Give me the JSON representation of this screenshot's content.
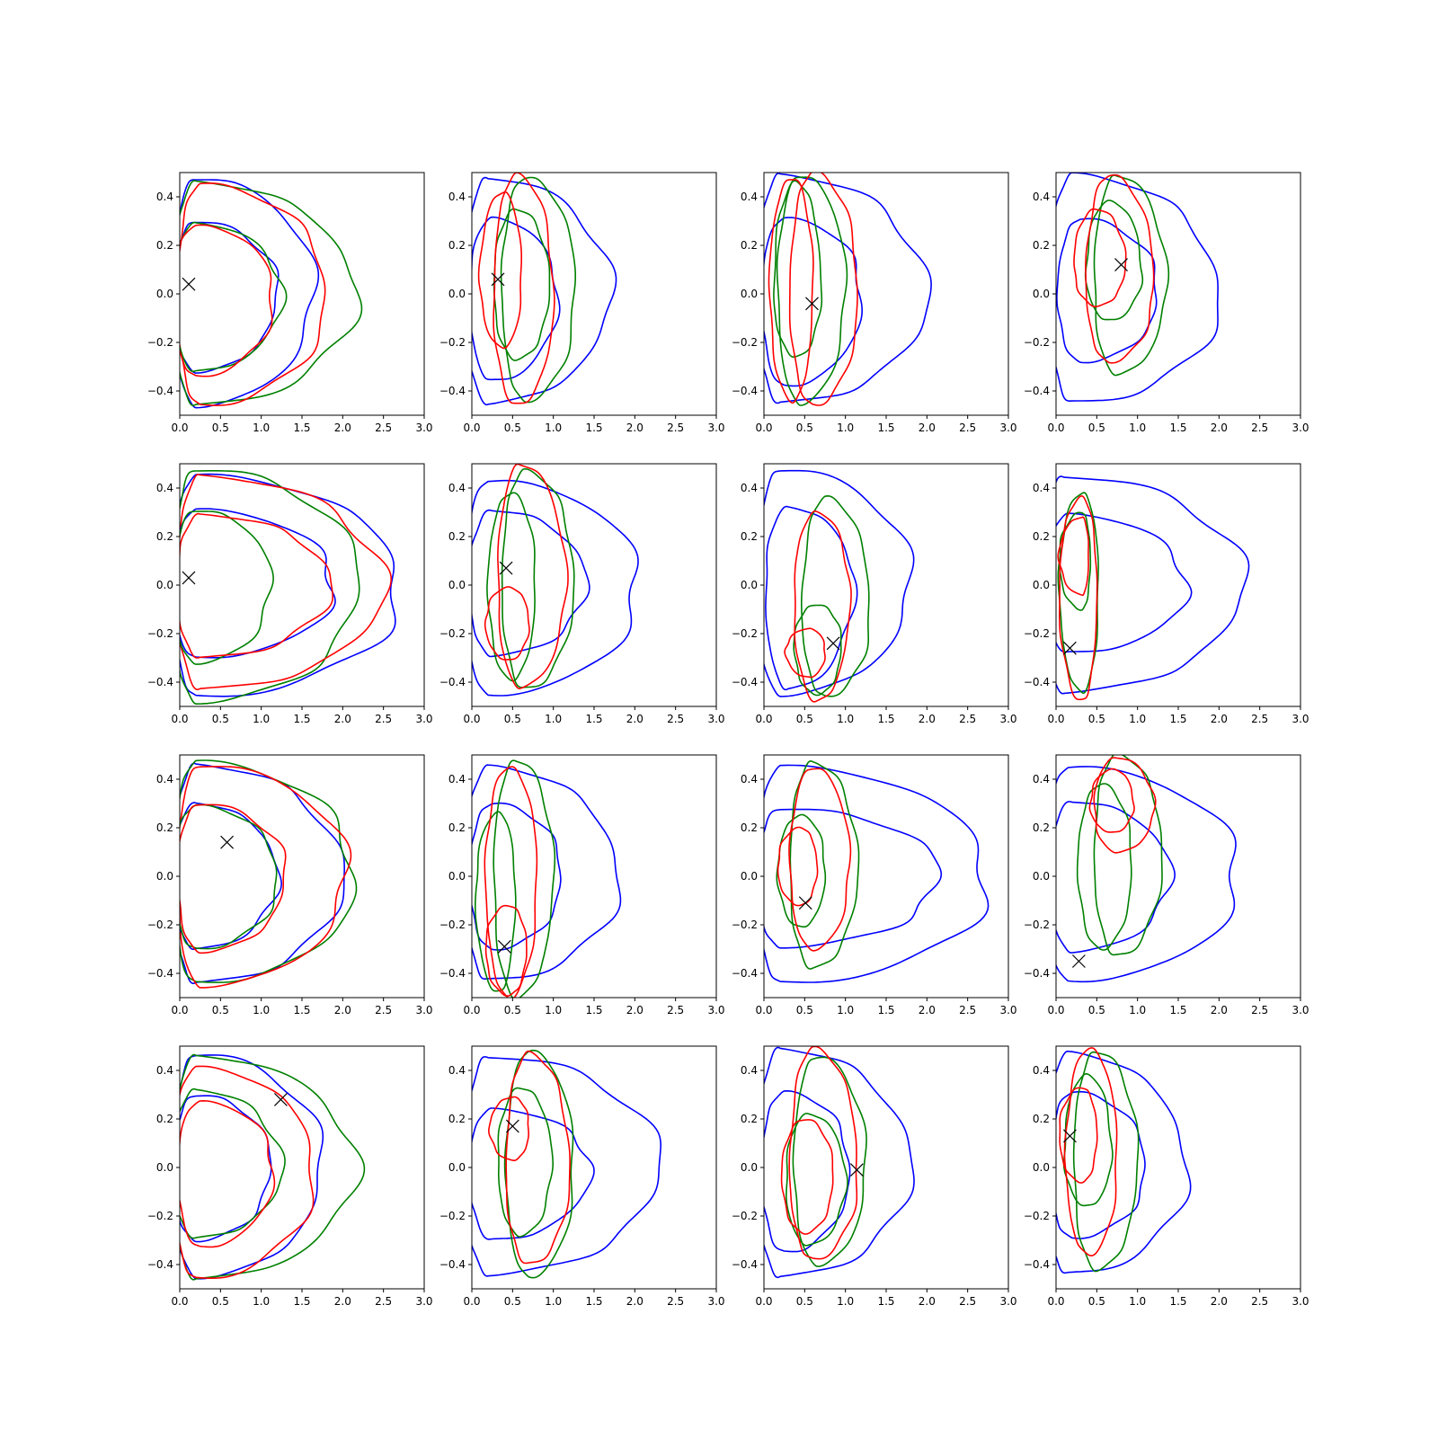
{
  "colors": {
    "blue": "#0000ff",
    "green": "#008000",
    "red": "#ff0000",
    "marker": "#000000"
  },
  "chart_data": {
    "type": "contour",
    "grid": false,
    "xlim": [
      0,
      3.0
    ],
    "ylim": [
      -0.5,
      0.5
    ],
    "xticks": [
      "0.0",
      "0.5",
      "1.0",
      "1.5",
      "2.0",
      "2.5",
      "3.0"
    ],
    "yticks": [
      "−0.4",
      "−0.2",
      "0.0",
      "0.2",
      "0.4"
    ],
    "xtick_values": [
      0,
      0.5,
      1.0,
      1.5,
      2.0,
      2.5,
      3.0
    ],
    "ytick_values": [
      -0.4,
      -0.2,
      0,
      0.2,
      0.4
    ],
    "panels": [
      {
        "marker": [
          0.11,
          0.04
        ],
        "contours": [
          {
            "color": "blue",
            "cx": 0.2,
            "cy": 0,
            "rx": 1.45,
            "top": 0.48,
            "bot": -0.46
          },
          {
            "color": "green",
            "cx": 0.2,
            "cy": 0,
            "rx": 1.95,
            "top": 0.46,
            "bot": -0.46
          },
          {
            "color": "red",
            "cx": 0.25,
            "cy": 0,
            "rx": 1.55,
            "top": 0.45,
            "bot": -0.46
          },
          {
            "color": "blue",
            "cx": 0.2,
            "cy": 0,
            "rx": 1.0,
            "top": 0.3,
            "bot": -0.32
          },
          {
            "color": "green",
            "cx": 0.2,
            "cy": 0,
            "rx": 1.05,
            "top": 0.29,
            "bot": -0.32
          },
          {
            "color": "red",
            "cx": 0.2,
            "cy": 0,
            "rx": 0.95,
            "top": 0.28,
            "bot": -0.34
          }
        ]
      },
      {
        "marker": [
          0.32,
          0.06
        ],
        "contours": [
          {
            "color": "blue",
            "cx": 0.2,
            "cy": 0,
            "rx": 1.5,
            "top": 0.48,
            "bot": -0.45
          },
          {
            "color": "blue",
            "cx": 0.25,
            "cy": 0,
            "rx": 0.8,
            "top": 0.31,
            "bot": -0.36
          },
          {
            "color": "green",
            "cx": 0.65,
            "cy": 0.02,
            "rx": 0.62,
            "top": 0.48,
            "bot": -0.44
          },
          {
            "color": "green",
            "cx": 0.55,
            "cy": 0.03,
            "rx": 0.4,
            "top": 0.35,
            "bot": -0.27
          },
          {
            "color": "red",
            "cx": 0.55,
            "cy": 0,
            "rx": 0.45,
            "top": 0.49,
            "bot": -0.46
          },
          {
            "color": "red",
            "cx": 0.38,
            "cy": 0.06,
            "rx": 0.23,
            "top": 0.42,
            "bot": -0.22
          }
        ]
      },
      {
        "marker": [
          0.59,
          -0.04
        ],
        "contours": [
          {
            "color": "blue",
            "cx": 0.2,
            "cy": 0,
            "rx": 1.8,
            "top": 0.49,
            "bot": -0.45
          },
          {
            "color": "blue",
            "cx": 0.25,
            "cy": 0,
            "rx": 0.95,
            "top": 0.31,
            "bot": -0.38
          },
          {
            "color": "green",
            "cx": 0.45,
            "cy": 0.02,
            "rx": 0.55,
            "top": 0.49,
            "bot": -0.45
          },
          {
            "color": "green",
            "cx": 0.4,
            "cy": 0.02,
            "rx": 0.3,
            "top": 0.46,
            "bot": -0.26
          },
          {
            "color": "red",
            "cx": 0.6,
            "cy": 0,
            "rx": 0.55,
            "top": 0.5,
            "bot": -0.46
          },
          {
            "color": "red",
            "cx": 0.35,
            "cy": 0.02,
            "rx": 0.25,
            "top": 0.48,
            "bot": -0.44
          }
        ]
      },
      {
        "marker": [
          0.8,
          0.12
        ],
        "contours": [
          {
            "color": "blue",
            "cx": 0.2,
            "cy": 0,
            "rx": 1.8,
            "top": 0.49,
            "bot": -0.45
          },
          {
            "color": "blue",
            "cx": 0.3,
            "cy": 0,
            "rx": 0.95,
            "top": 0.31,
            "bot": -0.28
          },
          {
            "color": "green",
            "cx": 0.75,
            "cy": 0.04,
            "rx": 0.6,
            "top": 0.49,
            "bot": -0.33
          },
          {
            "color": "green",
            "cx": 0.65,
            "cy": 0.1,
            "rx": 0.4,
            "top": 0.38,
            "bot": -0.11
          },
          {
            "color": "red",
            "cx": 0.65,
            "cy": 0.04,
            "rx": 0.55,
            "top": 0.49,
            "bot": -0.28
          },
          {
            "color": "red",
            "cx": 0.5,
            "cy": 0.12,
            "rx": 0.35,
            "top": 0.35,
            "bot": -0.05
          }
        ]
      },
      {
        "marker": [
          0.11,
          0.03
        ],
        "contours": [
          {
            "color": "blue",
            "cx": 0.2,
            "cy": 0,
            "rx": 2.5,
            "top": 0.45,
            "bot": -0.46
          },
          {
            "color": "green",
            "cx": 0.2,
            "cy": 0,
            "rx": 2.0,
            "top": 0.48,
            "bot": -0.48
          },
          {
            "color": "red",
            "cx": 0.25,
            "cy": 0,
            "rx": 2.25,
            "top": 0.45,
            "bot": -0.43
          },
          {
            "color": "blue",
            "cx": 0.2,
            "cy": 0,
            "rx": 1.7,
            "top": 0.31,
            "bot": -0.3
          },
          {
            "color": "green",
            "cx": 0.2,
            "cy": 0,
            "rx": 0.92,
            "top": 0.31,
            "bot": -0.32
          },
          {
            "color": "red",
            "cx": 0.25,
            "cy": 0,
            "rx": 1.6,
            "top": 0.29,
            "bot": -0.3
          }
        ]
      },
      {
        "marker": [
          0.42,
          0.07
        ],
        "contours": [
          {
            "color": "blue",
            "cx": 0.2,
            "cy": 0,
            "rx": 1.85,
            "top": 0.43,
            "bot": -0.45
          },
          {
            "color": "blue",
            "cx": 0.25,
            "cy": 0,
            "rx": 1.15,
            "top": 0.31,
            "bot": -0.29
          },
          {
            "color": "green",
            "cx": 0.65,
            "cy": 0.02,
            "rx": 0.6,
            "top": 0.47,
            "bot": -0.43
          },
          {
            "color": "green",
            "cx": 0.48,
            "cy": 0,
            "rx": 0.3,
            "top": 0.38,
            "bot": -0.39
          },
          {
            "color": "red",
            "cx": 0.6,
            "cy": 0,
            "rx": 0.55,
            "top": 0.5,
            "bot": -0.42
          },
          {
            "color": "red",
            "cx": 0.45,
            "cy": -0.15,
            "rx": 0.25,
            "top": -0.01,
            "bot": -0.31
          }
        ]
      },
      {
        "marker": [
          0.85,
          -0.24
        ],
        "contours": [
          {
            "color": "blue",
            "cx": 0.2,
            "cy": 0,
            "rx": 1.6,
            "top": 0.48,
            "bot": -0.45
          },
          {
            "color": "blue",
            "cx": 0.3,
            "cy": 0,
            "rx": 0.8,
            "top": 0.32,
            "bot": -0.43
          },
          {
            "color": "green",
            "cx": 0.75,
            "cy": -0.1,
            "rx": 0.55,
            "top": 0.36,
            "bot": -0.46
          },
          {
            "color": "green",
            "cx": 0.65,
            "cy": -0.25,
            "rx": 0.3,
            "top": -0.08,
            "bot": -0.45
          },
          {
            "color": "red",
            "cx": 0.65,
            "cy": -0.05,
            "rx": 0.4,
            "top": 0.3,
            "bot": -0.48
          },
          {
            "color": "red",
            "cx": 0.55,
            "cy": -0.27,
            "rx": 0.2,
            "top": -0.18,
            "bot": -0.38
          }
        ]
      },
      {
        "marker": [
          0.17,
          -0.26
        ],
        "contours": [
          {
            "color": "blue",
            "cx": 0.1,
            "cy": 0,
            "rx": 2.2,
            "top": 0.45,
            "bot": -0.44
          },
          {
            "color": "blue",
            "cx": 0.15,
            "cy": 0,
            "rx": 1.45,
            "top": 0.29,
            "bot": -0.28
          },
          {
            "color": "green",
            "cx": 0.32,
            "cy": 0,
            "rx": 0.2,
            "top": 0.38,
            "bot": -0.44
          },
          {
            "color": "green",
            "cx": 0.32,
            "cy": 0.1,
            "rx": 0.1,
            "top": 0.3,
            "bot": -0.1
          },
          {
            "color": "red",
            "cx": 0.32,
            "cy": 0,
            "rx": 0.18,
            "top": 0.36,
            "bot": -0.48
          },
          {
            "color": "red",
            "cx": 0.32,
            "cy": 0.12,
            "rx": 0.08,
            "top": 0.28,
            "bot": -0.04
          }
        ]
      },
      {
        "marker": [
          0.58,
          0.14
        ],
        "contours": [
          {
            "color": "blue",
            "cx": 0.2,
            "cy": 0,
            "rx": 1.8,
            "top": 0.46,
            "bot": -0.44
          },
          {
            "color": "green",
            "cx": 0.2,
            "cy": 0,
            "rx": 1.95,
            "top": 0.47,
            "bot": -0.44
          },
          {
            "color": "red",
            "cx": 0.25,
            "cy": 0,
            "rx": 1.8,
            "top": 0.46,
            "bot": -0.45
          },
          {
            "color": "blue",
            "cx": 0.2,
            "cy": 0,
            "rx": 1.0,
            "top": 0.3,
            "bot": -0.3
          },
          {
            "color": "green",
            "cx": 0.2,
            "cy": 0,
            "rx": 1.0,
            "top": 0.29,
            "bot": -0.3
          },
          {
            "color": "red",
            "cx": 0.25,
            "cy": 0,
            "rx": 1.05,
            "top": 0.3,
            "bot": -0.31
          }
        ]
      },
      {
        "marker": [
          0.4,
          -0.29
        ],
        "contours": [
          {
            "color": "blue",
            "cx": 0.2,
            "cy": 0,
            "rx": 1.6,
            "top": 0.45,
            "bot": -0.43
          },
          {
            "color": "blue",
            "cx": 0.25,
            "cy": 0,
            "rx": 0.85,
            "top": 0.3,
            "bot": -0.3
          },
          {
            "color": "green",
            "cx": 0.55,
            "cy": 0,
            "rx": 0.45,
            "top": 0.48,
            "bot": -0.5
          },
          {
            "color": "green",
            "cx": 0.33,
            "cy": -0.05,
            "rx": 0.2,
            "top": 0.26,
            "bot": -0.48
          },
          {
            "color": "red",
            "cx": 0.45,
            "cy": 0,
            "rx": 0.35,
            "top": 0.45,
            "bot": -0.5
          },
          {
            "color": "red",
            "cx": 0.45,
            "cy": -0.3,
            "rx": 0.22,
            "top": -0.12,
            "bot": -0.49
          }
        ]
      },
      {
        "marker": [
          0.51,
          -0.11
        ],
        "contours": [
          {
            "color": "blue",
            "cx": 0.2,
            "cy": 0,
            "rx": 2.55,
            "top": 0.45,
            "bot": -0.44
          },
          {
            "color": "blue",
            "cx": 0.2,
            "cy": 0,
            "rx": 1.95,
            "top": 0.28,
            "bot": -0.29
          },
          {
            "color": "green",
            "cx": 0.6,
            "cy": 0.04,
            "rx": 0.55,
            "top": 0.47,
            "bot": -0.38
          },
          {
            "color": "green",
            "cx": 0.45,
            "cy": 0.03,
            "rx": 0.3,
            "top": 0.25,
            "bot": -0.21
          },
          {
            "color": "red",
            "cx": 0.6,
            "cy": 0.04,
            "rx": 0.45,
            "top": 0.45,
            "bot": -0.3
          },
          {
            "color": "red",
            "cx": 0.45,
            "cy": 0.04,
            "rx": 0.2,
            "top": 0.2,
            "bot": -0.12
          }
        ]
      },
      {
        "marker": [
          0.28,
          -0.35
        ],
        "contours": [
          {
            "color": "blue",
            "cx": 0.15,
            "cy": 0,
            "rx": 2.1,
            "top": 0.45,
            "bot": -0.43
          },
          {
            "color": "blue",
            "cx": 0.2,
            "cy": 0,
            "rx": 1.2,
            "top": 0.31,
            "bot": -0.31
          },
          {
            "color": "green",
            "cx": 0.75,
            "cy": 0.1,
            "rx": 0.55,
            "top": 0.5,
            "bot": -0.33
          },
          {
            "color": "green",
            "cx": 0.55,
            "cy": 0.05,
            "rx": 0.38,
            "top": 0.38,
            "bot": -0.3
          },
          {
            "color": "red",
            "cx": 0.75,
            "cy": 0.28,
            "rx": 0.45,
            "top": 0.49,
            "bot": 0.1
          },
          {
            "color": "red",
            "cx": 0.7,
            "cy": 0.3,
            "rx": 0.25,
            "top": 0.44,
            "bot": 0.18
          }
        ]
      },
      {
        "marker": [
          1.24,
          0.28
        ],
        "contours": [
          {
            "color": "blue",
            "cx": 0.2,
            "cy": 0,
            "rx": 1.55,
            "top": 0.47,
            "bot": -0.45
          },
          {
            "color": "green",
            "cx": 0.2,
            "cy": 0,
            "rx": 1.95,
            "top": 0.46,
            "bot": -0.46
          },
          {
            "color": "red",
            "cx": 0.2,
            "cy": 0,
            "rx": 1.45,
            "top": 0.41,
            "bot": -0.46
          },
          {
            "color": "blue",
            "cx": 0.2,
            "cy": 0,
            "rx": 0.92,
            "top": 0.3,
            "bot": -0.3
          },
          {
            "color": "green",
            "cx": 0.2,
            "cy": 0,
            "rx": 1.05,
            "top": 0.32,
            "bot": -0.29
          },
          {
            "color": "red",
            "cx": 0.25,
            "cy": 0,
            "rx": 0.9,
            "top": 0.27,
            "bot": -0.33
          }
        ]
      },
      {
        "marker": [
          0.5,
          0.17
        ],
        "contours": [
          {
            "color": "blue",
            "cx": 0.2,
            "cy": 0,
            "rx": 2.1,
            "top": 0.46,
            "bot": -0.44
          },
          {
            "color": "blue",
            "cx": 0.25,
            "cy": 0,
            "rx": 1.2,
            "top": 0.24,
            "bot": -0.3
          },
          {
            "color": "green",
            "cx": 0.7,
            "cy": 0,
            "rx": 0.55,
            "top": 0.48,
            "bot": -0.45
          },
          {
            "color": "green",
            "cx": 0.6,
            "cy": 0.02,
            "rx": 0.38,
            "top": 0.33,
            "bot": -0.28
          },
          {
            "color": "red",
            "cx": 0.7,
            "cy": 0,
            "rx": 0.5,
            "top": 0.47,
            "bot": -0.4
          },
          {
            "color": "red",
            "cx": 0.5,
            "cy": 0.16,
            "rx": 0.2,
            "top": 0.29,
            "bot": 0.03
          }
        ]
      },
      {
        "marker": [
          1.14,
          -0.01
        ],
        "contours": [
          {
            "color": "blue",
            "cx": 0.2,
            "cy": 0,
            "rx": 1.6,
            "top": 0.49,
            "bot": -0.45
          },
          {
            "color": "blue",
            "cx": 0.25,
            "cy": 0,
            "rx": 0.8,
            "top": 0.31,
            "bot": -0.35
          },
          {
            "color": "green",
            "cx": 0.65,
            "cy": 0,
            "rx": 0.6,
            "top": 0.46,
            "bot": -0.4
          },
          {
            "color": "green",
            "cx": 0.55,
            "cy": -0.05,
            "rx": 0.45,
            "top": 0.22,
            "bot": -0.32
          },
          {
            "color": "red",
            "cx": 0.6,
            "cy": 0,
            "rx": 0.55,
            "top": 0.49,
            "bot": -0.38
          },
          {
            "color": "red",
            "cx": 0.5,
            "cy": -0.04,
            "rx": 0.35,
            "top": 0.2,
            "bot": -0.27
          }
        ]
      },
      {
        "marker": [
          0.17,
          0.13
        ],
        "contours": [
          {
            "color": "blue",
            "cx": 0.15,
            "cy": 0,
            "rx": 1.45,
            "top": 0.47,
            "bot": -0.44
          },
          {
            "color": "blue",
            "cx": 0.2,
            "cy": 0,
            "rx": 0.9,
            "top": 0.31,
            "bot": -0.29
          },
          {
            "color": "green",
            "cx": 0.5,
            "cy": 0.02,
            "rx": 0.5,
            "top": 0.48,
            "bot": -0.42
          },
          {
            "color": "green",
            "cx": 0.38,
            "cy": 0.07,
            "rx": 0.3,
            "top": 0.38,
            "bot": -0.16
          },
          {
            "color": "red",
            "cx": 0.4,
            "cy": 0.04,
            "rx": 0.35,
            "top": 0.49,
            "bot": -0.36
          },
          {
            "color": "red",
            "cx": 0.32,
            "cy": 0.13,
            "rx": 0.18,
            "top": 0.33,
            "bot": -0.06
          }
        ]
      }
    ]
  }
}
